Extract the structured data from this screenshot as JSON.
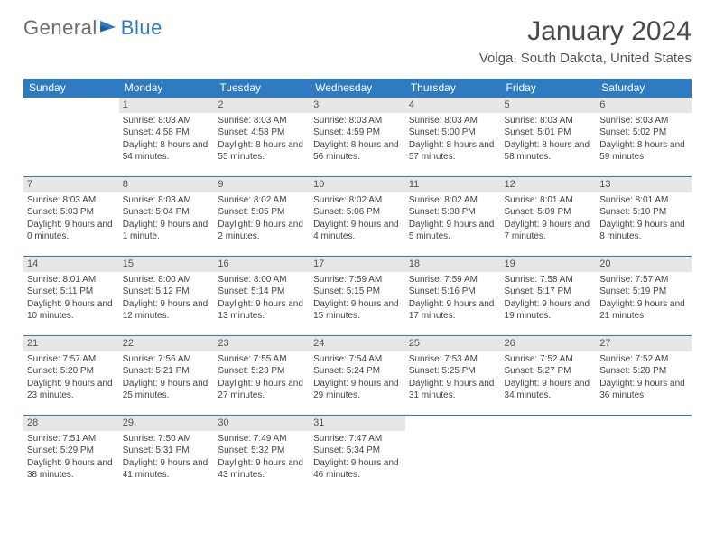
{
  "brand": {
    "text1": "General",
    "text2": "Blue"
  },
  "title": "January 2024",
  "location": "Volga, South Dakota, United States",
  "colors": {
    "header_bg": "#2f7bc2",
    "header_text": "#ffffff",
    "daynum_bg": "#e7e7e7",
    "row_border": "#2f7bc2",
    "body_text": "#444444",
    "title_text": "#4a4a4a"
  },
  "typography": {
    "body_fontsize": 10,
    "title_fontsize": 30,
    "header_fontsize": 12
  },
  "weekday_labels": [
    "Sunday",
    "Monday",
    "Tuesday",
    "Wednesday",
    "Thursday",
    "Friday",
    "Saturday"
  ],
  "weeks": [
    [
      null,
      {
        "n": "1",
        "sr": "8:03 AM",
        "ss": "4:58 PM",
        "dl": "8 hours and 54 minutes."
      },
      {
        "n": "2",
        "sr": "8:03 AM",
        "ss": "4:58 PM",
        "dl": "8 hours and 55 minutes."
      },
      {
        "n": "3",
        "sr": "8:03 AM",
        "ss": "4:59 PM",
        "dl": "8 hours and 56 minutes."
      },
      {
        "n": "4",
        "sr": "8:03 AM",
        "ss": "5:00 PM",
        "dl": "8 hours and 57 minutes."
      },
      {
        "n": "5",
        "sr": "8:03 AM",
        "ss": "5:01 PM",
        "dl": "8 hours and 58 minutes."
      },
      {
        "n": "6",
        "sr": "8:03 AM",
        "ss": "5:02 PM",
        "dl": "8 hours and 59 minutes."
      }
    ],
    [
      {
        "n": "7",
        "sr": "8:03 AM",
        "ss": "5:03 PM",
        "dl": "9 hours and 0 minutes."
      },
      {
        "n": "8",
        "sr": "8:03 AM",
        "ss": "5:04 PM",
        "dl": "9 hours and 1 minute."
      },
      {
        "n": "9",
        "sr": "8:02 AM",
        "ss": "5:05 PM",
        "dl": "9 hours and 2 minutes."
      },
      {
        "n": "10",
        "sr": "8:02 AM",
        "ss": "5:06 PM",
        "dl": "9 hours and 4 minutes."
      },
      {
        "n": "11",
        "sr": "8:02 AM",
        "ss": "5:08 PM",
        "dl": "9 hours and 5 minutes."
      },
      {
        "n": "12",
        "sr": "8:01 AM",
        "ss": "5:09 PM",
        "dl": "9 hours and 7 minutes."
      },
      {
        "n": "13",
        "sr": "8:01 AM",
        "ss": "5:10 PM",
        "dl": "9 hours and 8 minutes."
      }
    ],
    [
      {
        "n": "14",
        "sr": "8:01 AM",
        "ss": "5:11 PM",
        "dl": "9 hours and 10 minutes."
      },
      {
        "n": "15",
        "sr": "8:00 AM",
        "ss": "5:12 PM",
        "dl": "9 hours and 12 minutes."
      },
      {
        "n": "16",
        "sr": "8:00 AM",
        "ss": "5:14 PM",
        "dl": "9 hours and 13 minutes."
      },
      {
        "n": "17",
        "sr": "7:59 AM",
        "ss": "5:15 PM",
        "dl": "9 hours and 15 minutes."
      },
      {
        "n": "18",
        "sr": "7:59 AM",
        "ss": "5:16 PM",
        "dl": "9 hours and 17 minutes."
      },
      {
        "n": "19",
        "sr": "7:58 AM",
        "ss": "5:17 PM",
        "dl": "9 hours and 19 minutes."
      },
      {
        "n": "20",
        "sr": "7:57 AM",
        "ss": "5:19 PM",
        "dl": "9 hours and 21 minutes."
      }
    ],
    [
      {
        "n": "21",
        "sr": "7:57 AM",
        "ss": "5:20 PM",
        "dl": "9 hours and 23 minutes."
      },
      {
        "n": "22",
        "sr": "7:56 AM",
        "ss": "5:21 PM",
        "dl": "9 hours and 25 minutes."
      },
      {
        "n": "23",
        "sr": "7:55 AM",
        "ss": "5:23 PM",
        "dl": "9 hours and 27 minutes."
      },
      {
        "n": "24",
        "sr": "7:54 AM",
        "ss": "5:24 PM",
        "dl": "9 hours and 29 minutes."
      },
      {
        "n": "25",
        "sr": "7:53 AM",
        "ss": "5:25 PM",
        "dl": "9 hours and 31 minutes."
      },
      {
        "n": "26",
        "sr": "7:52 AM",
        "ss": "5:27 PM",
        "dl": "9 hours and 34 minutes."
      },
      {
        "n": "27",
        "sr": "7:52 AM",
        "ss": "5:28 PM",
        "dl": "9 hours and 36 minutes."
      }
    ],
    [
      {
        "n": "28",
        "sr": "7:51 AM",
        "ss": "5:29 PM",
        "dl": "9 hours and 38 minutes."
      },
      {
        "n": "29",
        "sr": "7:50 AM",
        "ss": "5:31 PM",
        "dl": "9 hours and 41 minutes."
      },
      {
        "n": "30",
        "sr": "7:49 AM",
        "ss": "5:32 PM",
        "dl": "9 hours and 43 minutes."
      },
      {
        "n": "31",
        "sr": "7:47 AM",
        "ss": "5:34 PM",
        "dl": "9 hours and 46 minutes."
      },
      null,
      null,
      null
    ]
  ],
  "labels": {
    "sunrise": "Sunrise: ",
    "sunset": "Sunset: ",
    "daylight": "Daylight: "
  }
}
